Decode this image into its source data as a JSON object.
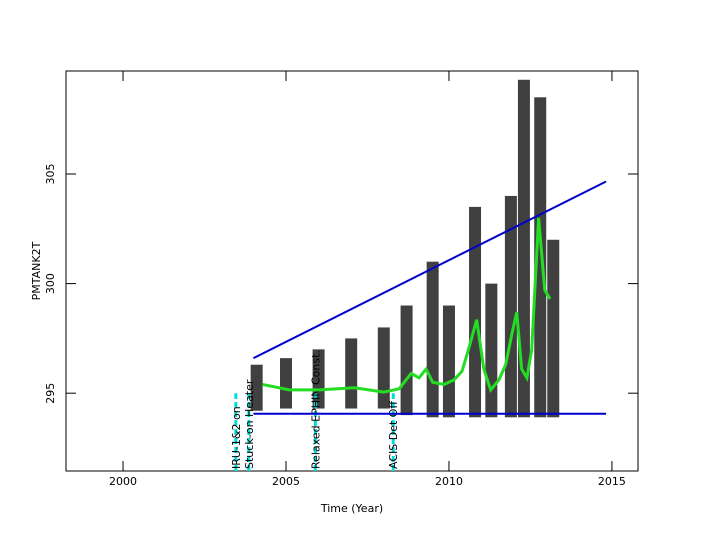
{
  "chart_data": {
    "type": "scatter",
    "xlabel": "Time (Year)",
    "ylabel": "PMTANK2T",
    "xlim": [
      1998.25,
      2015.8
    ],
    "ylim": [
      291.45,
      309.7
    ],
    "xticks": [
      2000,
      2005,
      2010,
      2015
    ],
    "yticks": [
      295,
      300,
      305
    ],
    "cloud": {
      "color": "#000000",
      "x": [
        2004.1,
        2005,
        2006,
        2007,
        2008,
        2008.7,
        2009.5,
        2010,
        2010.8,
        2011.3,
        2011.9,
        2012.3,
        2012.8,
        2013.2
      ],
      "low": [
        294.2,
        294.3,
        294.3,
        294.3,
        294.3,
        294.0,
        293.9,
        293.9,
        293.9,
        293.9,
        293.9,
        293.9,
        293.9,
        293.9
      ],
      "high": [
        296.3,
        296.6,
        297.0,
        297.5,
        298.0,
        299,
        301,
        299,
        303.5,
        300,
        304,
        309.3,
        308.5,
        302
      ]
    },
    "trend": {
      "color": "#22dd22",
      "x": [
        2004.28,
        2005.1,
        2006.02,
        2007.1,
        2008.0,
        2008.47,
        2008.84,
        2009.08,
        2009.3,
        2009.5,
        2009.85,
        2010.15,
        2010.4,
        2010.6,
        2010.85,
        2011.07,
        2011.28,
        2011.53,
        2011.74,
        2011.93,
        2012.08,
        2012.23,
        2012.39,
        2012.54,
        2012.75,
        2012.94,
        2013.1
      ],
      "values": [
        295.4,
        295.15,
        295.15,
        295.25,
        295.05,
        295.2,
        295.9,
        295.7,
        296.1,
        295.5,
        295.4,
        295.6,
        296,
        297,
        298.35,
        296.1,
        295.15,
        295.6,
        296.3,
        297.7,
        298.7,
        296.1,
        295.7,
        297,
        303,
        299.7,
        299.3
      ]
    },
    "limits": [
      {
        "color": "#0000cc",
        "x": [
          2004.0,
          2014.82
        ],
        "values": [
          296.6,
          304.66
        ]
      },
      {
        "color": "#0000cc",
        "x": [
          2004.0,
          2014.82
        ],
        "values": [
          294.06,
          294.06
        ]
      }
    ],
    "events": [
      {
        "x": 2003.46,
        "label": "IRU-1&2 on",
        "color": "#00dddd"
      },
      {
        "x": 2003.86,
        "label": "Stuck-on Heater",
        "color": "#00dddd"
      },
      {
        "x": 2005.9,
        "label": "Relaxed EPHIN Const.",
        "color": "#00dddd"
      },
      {
        "x": 2008.29,
        "label": "ACIS Det Off",
        "color": "#00dddd"
      }
    ]
  }
}
